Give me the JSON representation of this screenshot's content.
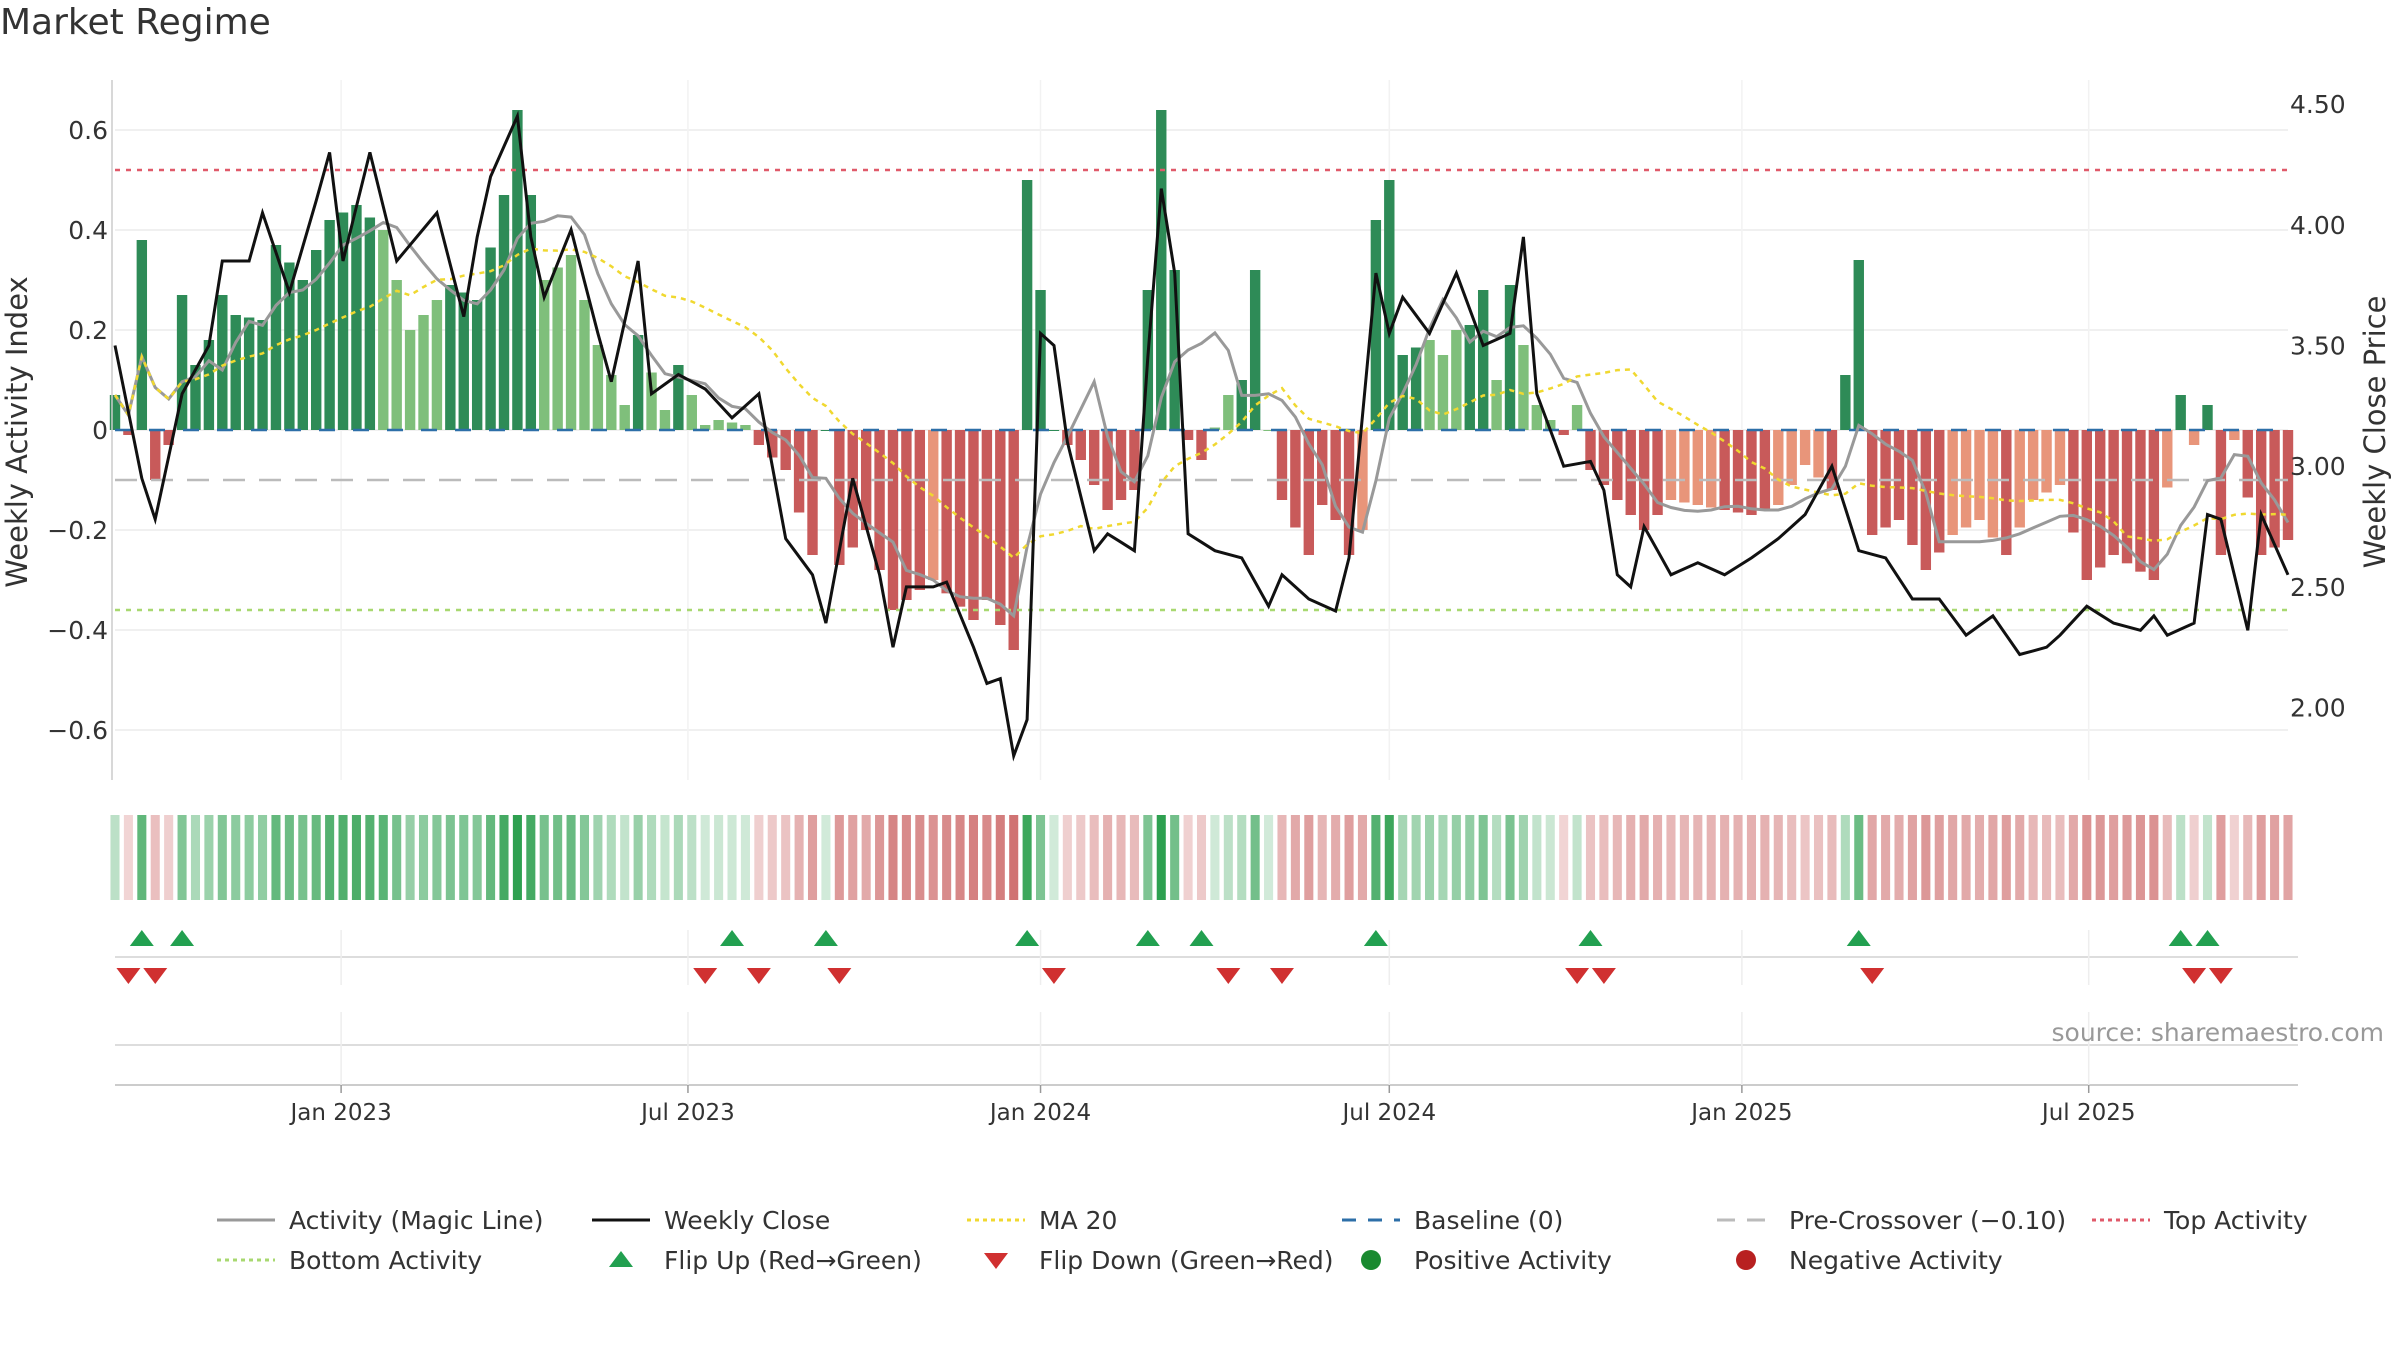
{
  "title": "Market Regime",
  "source": "source: sharemaestro.com",
  "colors": {
    "green_strong": "#2e8b57",
    "green_light": "#7fbf7b",
    "red_strong": "#c85a5a",
    "red_light": "#e8957a",
    "magic_line": "#999999",
    "close": "#111111",
    "ma20": "#f0d830",
    "baseline": "#2d6fa8",
    "pre_crossover": "#bbbbbb",
    "top": "#e05a6a",
    "bottom": "#a8d870",
    "flip_up": "#22a050",
    "flip_down": "#d03030"
  },
  "chart_data": {
    "type": "bar",
    "ylabel": "Weekly Activity Index",
    "ylabel_right": "Weekly Close Price",
    "ylim": [
      -0.7,
      0.7
    ],
    "ylim_right": [
      1.7,
      4.6
    ],
    "yticks": [
      -0.6,
      -0.4,
      -0.2,
      0,
      0.2,
      0.4,
      0.6
    ],
    "ytick_labels": [
      "−0.6",
      "−0.4",
      "−0.2",
      "0",
      "0.2",
      "0.4",
      "0.6"
    ],
    "yticks_right": [
      2.0,
      2.5,
      3.0,
      3.5,
      4.0,
      4.5
    ],
    "ytick_labels_right": [
      "2.00",
      "2.50",
      "3.00",
      "3.50",
      "4.00",
      "4.50"
    ],
    "x_start": "2022-09-05",
    "x_end": "2025-10-13",
    "xticks": [
      {
        "date": "2023-01-01",
        "label": "Jan 2023"
      },
      {
        "date": "2023-07-01",
        "label": "Jul 2023"
      },
      {
        "date": "2024-01-01",
        "label": "Jan 2024"
      },
      {
        "date": "2024-07-01",
        "label": "Jul 2024"
      },
      {
        "date": "2025-01-01",
        "label": "Jan 2025"
      },
      {
        "date": "2025-07-01",
        "label": "Jul 2025"
      }
    ],
    "top_activity": 0.52,
    "bottom_activity": -0.36,
    "pre_crossover": -0.1,
    "activity_anchors": [
      [
        "2022-09-05",
        0.07
      ],
      [
        "2022-09-12",
        -0.01
      ],
      [
        "2022-09-19",
        0.38
      ],
      [
        "2022-09-26",
        -0.1
      ],
      [
        "2022-10-03",
        -0.03
      ],
      [
        "2022-10-10",
        0.27
      ],
      [
        "2022-10-17",
        0.13
      ],
      [
        "2022-10-24",
        0.18
      ],
      [
        "2022-10-31",
        0.27
      ],
      [
        "2022-11-07",
        0.23
      ],
      [
        "2022-11-21",
        0.22
      ],
      [
        "2022-11-28",
        0.37
      ],
      [
        "2022-12-12",
        0.3
      ],
      [
        "2022-12-26",
        0.42
      ],
      [
        "2023-01-09",
        0.45
      ],
      [
        "2023-01-23",
        0.4
      ],
      [
        "2023-02-06",
        0.2
      ],
      [
        "2023-02-27",
        0.29
      ],
      [
        "2023-03-13",
        0.26
      ],
      [
        "2023-03-27",
        0.47
      ],
      [
        "2023-04-03",
        0.64
      ],
      [
        "2023-04-17",
        0.3
      ],
      [
        "2023-05-01",
        0.35
      ],
      [
        "2023-05-15",
        0.17
      ],
      [
        "2023-05-29",
        0.05
      ],
      [
        "2023-06-05",
        0.19
      ],
      [
        "2023-06-19",
        0.04
      ],
      [
        "2023-06-26",
        0.13
      ],
      [
        "2023-07-10",
        0.01
      ],
      [
        "2023-07-17",
        0.02
      ],
      [
        "2023-07-31",
        0.01
      ],
      [
        "2023-08-07",
        -0.03
      ],
      [
        "2023-08-21",
        -0.08
      ],
      [
        "2023-09-04",
        -0.25
      ],
      [
        "2023-09-11",
        0.0
      ],
      [
        "2023-09-18",
        -0.27
      ],
      [
        "2023-10-02",
        -0.2
      ],
      [
        "2023-10-16",
        -0.36
      ],
      [
        "2023-11-06",
        -0.3
      ],
      [
        "2023-11-27",
        -0.38
      ],
      [
        "2023-12-04",
        -0.34
      ],
      [
        "2023-12-18",
        -0.44
      ],
      [
        "2023-12-25",
        0.5
      ],
      [
        "2024-01-01",
        0.28
      ],
      [
        "2024-01-08",
        0.0
      ],
      [
        "2024-01-22",
        -0.06
      ],
      [
        "2024-02-05",
        -0.16
      ],
      [
        "2024-02-19",
        -0.12
      ],
      [
        "2024-02-26",
        0.28
      ],
      [
        "2024-03-04",
        0.64
      ],
      [
        "2024-03-11",
        0.32
      ],
      [
        "2024-03-18",
        -0.02
      ],
      [
        "2024-03-25",
        -0.06
      ],
      [
        "2024-04-08",
        0.07
      ],
      [
        "2024-04-15",
        0.1
      ],
      [
        "2024-04-22",
        0.32
      ],
      [
        "2024-04-29",
        0.0
      ],
      [
        "2024-05-06",
        -0.14
      ],
      [
        "2024-05-20",
        -0.25
      ],
      [
        "2024-05-27",
        -0.15
      ],
      [
        "2024-06-03",
        -0.18
      ],
      [
        "2024-06-10",
        -0.25
      ],
      [
        "2024-06-17",
        -0.2
      ],
      [
        "2024-06-24",
        0.42
      ],
      [
        "2024-07-01",
        0.5
      ],
      [
        "2024-07-08",
        0.15
      ],
      [
        "2024-07-22",
        0.18
      ],
      [
        "2024-07-29",
        0.15
      ],
      [
        "2024-08-05",
        0.2
      ],
      [
        "2024-08-12",
        0.21
      ],
      [
        "2024-08-19",
        0.28
      ],
      [
        "2024-08-26",
        0.1
      ],
      [
        "2024-09-02",
        0.29
      ],
      [
        "2024-09-16",
        0.05
      ],
      [
        "2024-09-30",
        -0.01
      ],
      [
        "2024-10-07",
        0.05
      ],
      [
        "2024-10-14",
        -0.08
      ],
      [
        "2024-10-28",
        -0.14
      ],
      [
        "2024-11-11",
        -0.2
      ],
      [
        "2024-11-25",
        -0.14
      ],
      [
        "2024-12-09",
        -0.15
      ],
      [
        "2024-12-23",
        -0.16
      ],
      [
        "2025-01-06",
        -0.17
      ],
      [
        "2025-01-20",
        -0.15
      ],
      [
        "2025-02-03",
        -0.07
      ],
      [
        "2025-02-17",
        -0.12
      ],
      [
        "2025-03-03",
        0.34
      ],
      [
        "2025-03-10",
        -0.21
      ],
      [
        "2025-03-24",
        -0.18
      ],
      [
        "2025-04-07",
        -0.28
      ],
      [
        "2025-04-21",
        -0.21
      ],
      [
        "2025-05-05",
        -0.18
      ],
      [
        "2025-05-19",
        -0.25
      ],
      [
        "2025-06-02",
        -0.14
      ],
      [
        "2025-06-16",
        -0.11
      ],
      [
        "2025-06-30",
        -0.3
      ],
      [
        "2025-07-14",
        -0.25
      ],
      [
        "2025-08-04",
        -0.3
      ],
      [
        "2025-08-18",
        0.07
      ],
      [
        "2025-08-25",
        -0.03
      ],
      [
        "2025-09-01",
        0.05
      ],
      [
        "2025-09-08",
        -0.25
      ],
      [
        "2025-09-15",
        -0.02
      ],
      [
        "2025-09-29",
        -0.25
      ],
      [
        "2025-10-13",
        -0.22
      ]
    ],
    "close_anchors": [
      [
        "2022-09-05",
        3.5
      ],
      [
        "2022-09-19",
        2.95
      ],
      [
        "2022-09-26",
        2.78
      ],
      [
        "2022-10-10",
        3.3
      ],
      [
        "2022-10-24",
        3.5
      ],
      [
        "2022-10-31",
        3.85
      ],
      [
        "2022-11-14",
        3.85
      ],
      [
        "2022-11-21",
        4.05
      ],
      [
        "2022-12-05",
        3.72
      ],
      [
        "2022-12-19",
        4.1
      ],
      [
        "2022-12-26",
        4.3
      ],
      [
        "2023-01-02",
        3.85
      ],
      [
        "2023-01-16",
        4.3
      ],
      [
        "2023-01-30",
        3.85
      ],
      [
        "2023-02-20",
        4.05
      ],
      [
        "2023-03-06",
        3.62
      ],
      [
        "2023-03-13",
        3.95
      ],
      [
        "2023-03-20",
        4.2
      ],
      [
        "2023-04-03",
        4.45
      ],
      [
        "2023-04-10",
        3.95
      ],
      [
        "2023-04-17",
        3.7
      ],
      [
        "2023-05-01",
        3.98
      ],
      [
        "2023-05-15",
        3.55
      ],
      [
        "2023-05-22",
        3.35
      ],
      [
        "2023-06-05",
        3.85
      ],
      [
        "2023-06-12",
        3.3
      ],
      [
        "2023-06-26",
        3.38
      ],
      [
        "2023-07-10",
        3.32
      ],
      [
        "2023-07-24",
        3.2
      ],
      [
        "2023-08-07",
        3.3
      ],
      [
        "2023-08-21",
        2.7
      ],
      [
        "2023-09-04",
        2.55
      ],
      [
        "2023-09-11",
        2.35
      ],
      [
        "2023-09-25",
        2.95
      ],
      [
        "2023-10-09",
        2.55
      ],
      [
        "2023-10-16",
        2.25
      ],
      [
        "2023-10-23",
        2.5
      ],
      [
        "2023-11-06",
        2.5
      ],
      [
        "2023-11-13",
        2.52
      ],
      [
        "2023-11-27",
        2.25
      ],
      [
        "2023-12-04",
        2.1
      ],
      [
        "2023-12-11",
        2.12
      ],
      [
        "2023-12-18",
        1.8
      ],
      [
        "2023-12-25",
        1.95
      ],
      [
        "2024-01-01",
        3.55
      ],
      [
        "2024-01-08",
        3.5
      ],
      [
        "2024-01-15",
        3.1
      ],
      [
        "2024-01-29",
        2.65
      ],
      [
        "2024-02-05",
        2.72
      ],
      [
        "2024-02-19",
        2.65
      ],
      [
        "2024-02-26",
        3.45
      ],
      [
        "2024-03-04",
        4.15
      ],
      [
        "2024-03-11",
        3.8
      ],
      [
        "2024-03-18",
        2.72
      ],
      [
        "2024-04-01",
        2.65
      ],
      [
        "2024-04-15",
        2.62
      ],
      [
        "2024-04-29",
        2.42
      ],
      [
        "2024-05-06",
        2.55
      ],
      [
        "2024-05-20",
        2.45
      ],
      [
        "2024-06-03",
        2.4
      ],
      [
        "2024-06-10",
        2.62
      ],
      [
        "2024-06-24",
        3.8
      ],
      [
        "2024-07-01",
        3.55
      ],
      [
        "2024-07-08",
        3.7
      ],
      [
        "2024-07-22",
        3.55
      ],
      [
        "2024-08-05",
        3.8
      ],
      [
        "2024-08-19",
        3.5
      ],
      [
        "2024-09-02",
        3.55
      ],
      [
        "2024-09-09",
        3.95
      ],
      [
        "2024-09-16",
        3.3
      ],
      [
        "2024-09-30",
        3.0
      ],
      [
        "2024-10-14",
        3.02
      ],
      [
        "2024-10-21",
        2.9
      ],
      [
        "2024-10-28",
        2.55
      ],
      [
        "2024-11-04",
        2.5
      ],
      [
        "2024-11-11",
        2.75
      ],
      [
        "2024-11-25",
        2.55
      ],
      [
        "2024-12-09",
        2.6
      ],
      [
        "2024-12-23",
        2.55
      ],
      [
        "2025-01-06",
        2.62
      ],
      [
        "2025-01-20",
        2.7
      ],
      [
        "2025-02-03",
        2.8
      ],
      [
        "2025-02-17",
        3.0
      ],
      [
        "2025-03-03",
        2.65
      ],
      [
        "2025-03-17",
        2.62
      ],
      [
        "2025-03-31",
        2.45
      ],
      [
        "2025-04-14",
        2.45
      ],
      [
        "2025-04-28",
        2.3
      ],
      [
        "2025-05-12",
        2.38
      ],
      [
        "2025-05-26",
        2.22
      ],
      [
        "2025-06-09",
        2.25
      ],
      [
        "2025-06-16",
        2.3
      ],
      [
        "2025-06-30",
        2.42
      ],
      [
        "2025-07-14",
        2.35
      ],
      [
        "2025-07-28",
        2.32
      ],
      [
        "2025-08-04",
        2.38
      ],
      [
        "2025-08-11",
        2.3
      ],
      [
        "2025-08-25",
        2.35
      ],
      [
        "2025-09-01",
        2.8
      ],
      [
        "2025-09-08",
        2.78
      ],
      [
        "2025-09-22",
        2.32
      ],
      [
        "2025-09-29",
        2.8
      ],
      [
        "2025-10-13",
        2.55
      ]
    ],
    "flip_up_dates": [
      "2022-09-19",
      "2022-10-10",
      "2023-07-24",
      "2023-09-11",
      "2023-12-25",
      "2024-02-26",
      "2024-03-25",
      "2024-06-24",
      "2024-10-14",
      "2025-03-03",
      "2025-08-18",
      "2025-09-01"
    ],
    "flip_down_dates": [
      "2022-09-12",
      "2022-09-26",
      "2023-07-10",
      "2023-08-07",
      "2023-09-18",
      "2024-01-08",
      "2024-04-08",
      "2024-05-06",
      "2024-10-07",
      "2024-10-21",
      "2025-03-10",
      "2025-08-25",
      "2025-09-08"
    ]
  },
  "legend": [
    {
      "key": "magic",
      "label": "Activity (Magic Line)",
      "icon": "solid-line-icon"
    },
    {
      "key": "close",
      "label": "Weekly Close",
      "icon": "solid-line-icon"
    },
    {
      "key": "ma20",
      "label": "MA 20",
      "icon": "dotted-line-icon"
    },
    {
      "key": "baseline",
      "label": "Baseline (0)",
      "icon": "dashed-line-icon"
    },
    {
      "key": "pre",
      "label": "Pre-Crossover (−0.10)",
      "icon": "dashed-line-icon"
    },
    {
      "key": "top",
      "label": "Top Activity",
      "icon": "dotted-line-icon"
    },
    {
      "key": "bottom",
      "label": "Bottom Activity",
      "icon": "dotted-line-icon"
    },
    {
      "key": "flipup",
      "label": "Flip Up (Red→Green)",
      "icon": "triangle-up-icon"
    },
    {
      "key": "flipdown",
      "label": "Flip Down (Green→Red)",
      "icon": "triangle-down-icon"
    },
    {
      "key": "pos",
      "label": "Positive Activity",
      "icon": "circle-icon"
    },
    {
      "key": "neg",
      "label": "Negative Activity",
      "icon": "circle-icon"
    }
  ]
}
